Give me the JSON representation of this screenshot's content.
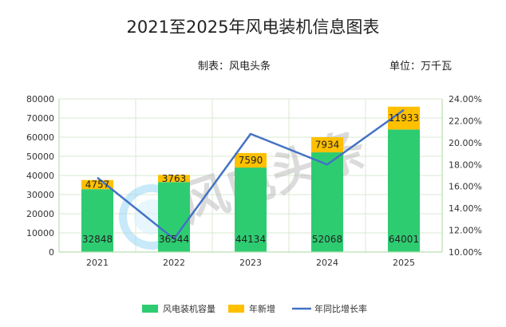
{
  "header": {
    "title": "2021至2025年风电装机信息图表",
    "maker": "制表：风电头条",
    "unit": "单位：万千瓦"
  },
  "watermark": {
    "text": "风电头条"
  },
  "colors": {
    "capacity": "#2ecc71",
    "new": "#ffc000",
    "growth": "#4472c4",
    "grid": "#d9ead3",
    "axis": "#b7dfb0"
  },
  "chart_data": {
    "type": "bar",
    "title": "2021至2025年风电装机信息图表",
    "categories": [
      "2021",
      "2022",
      "2023",
      "2024",
      "2025"
    ],
    "series": [
      {
        "name": "风电装机容量",
        "kind": "stacked-bar",
        "values": [
          32848,
          36544,
          44134,
          52068,
          64001
        ]
      },
      {
        "name": "年新增",
        "kind": "stacked-bar",
        "values": [
          4757,
          3763,
          7590,
          7934,
          11933
        ]
      },
      {
        "name": "年同比增长率",
        "kind": "line",
        "axis": "right",
        "values": [
          16.8,
          11.2,
          20.8,
          18.0,
          23.0
        ]
      }
    ],
    "ylim_left": [
      0,
      80000
    ],
    "yticks_left": [
      "0",
      "10000",
      "20000",
      "30000",
      "40000",
      "50000",
      "60000",
      "70000",
      "80000"
    ],
    "ylim_right": [
      10,
      24
    ],
    "yticks_right": [
      "10.00%",
      "12.00%",
      "14.00%",
      "16.00%",
      "18.00%",
      "20.00%",
      "22.00%",
      "24.00%"
    ],
    "legend": [
      "风电装机容量",
      "年新增",
      "年同比增长率"
    ],
    "legend_position": "bottom",
    "grid": true
  }
}
